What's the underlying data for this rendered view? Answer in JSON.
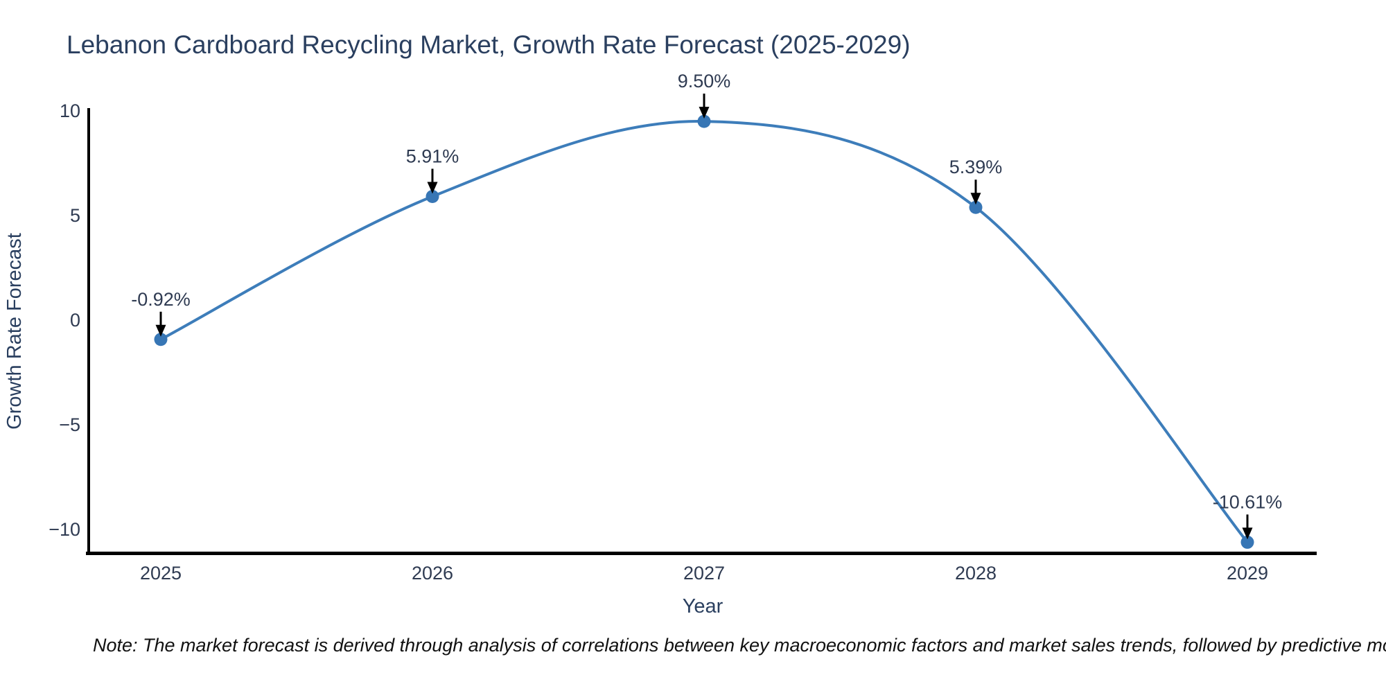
{
  "title": "Lebanon Cardboard Recycling Market, Growth Rate Forecast (2025-2029)",
  "note": "Note: The market forecast is derived through analysis of correlations between key macroeconomic factors and market sales trends, followed by predictive modeling to project future sales",
  "chart_data": {
    "type": "line",
    "title": "Lebanon Cardboard Recycling Market, Growth Rate Forecast (2025-2029)",
    "xlabel": "Year",
    "ylabel": "Growth Rate Forecast",
    "x": [
      2025,
      2026,
      2027,
      2028,
      2029
    ],
    "values": [
      -0.92,
      5.91,
      9.5,
      5.39,
      -10.61
    ],
    "point_labels": [
      "-0.92%",
      "5.91%",
      "9.50%",
      "5.39%",
      "-10.61%"
    ],
    "xtick_labels": [
      "2025",
      "2026",
      "2027",
      "2028",
      "2029"
    ],
    "ytick_values": [
      10,
      5,
      0,
      -5,
      -10
    ],
    "ytick_labels": [
      "10",
      "5",
      "0",
      "−5",
      "−10"
    ],
    "ylim": [
      -11.2,
      10.2
    ],
    "grid": false,
    "legend_position": "none",
    "curve": "spline",
    "annotations": "value labels with down arrows above each point",
    "colors": {
      "line": "#3d7dba",
      "marker": "#3776b5",
      "axis": "#000000",
      "text": "#2a3f5f",
      "tick_text": "#2f3b52",
      "arrow": "#000000",
      "background": "#ffffff"
    }
  }
}
